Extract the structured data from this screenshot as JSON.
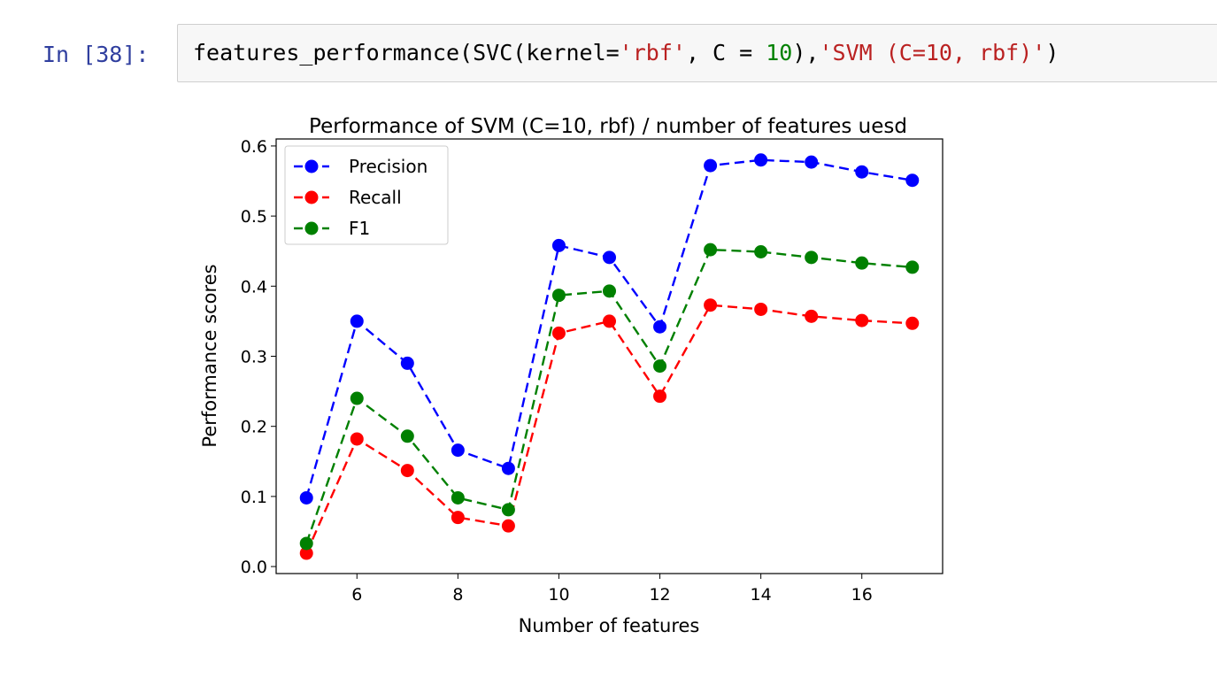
{
  "cell": {
    "prompt": "In [38]:",
    "code": {
      "fn": "features_performance",
      "open1": "(",
      "cls": "SVC",
      "open2": "(",
      "kw": "kernel=",
      "str1": "'rbf'",
      "mid": ", C = ",
      "num": "10",
      "close": "),",
      "str2": "'SVM (C=10, rbf)'",
      "end": ")"
    }
  },
  "chart_data": {
    "type": "line",
    "title": "Performance of SVM (C=10, rbf) / number of features uesd",
    "xlabel": "Number of features",
    "ylabel": "Performance scores",
    "x": [
      5,
      6,
      7,
      8,
      9,
      10,
      11,
      12,
      13,
      14,
      15,
      16,
      17
    ],
    "xlim": [
      4.4,
      17.6
    ],
    "ylim": [
      -0.01,
      0.61
    ],
    "xticks": [
      "6",
      "8",
      "10",
      "12",
      "14",
      "16"
    ],
    "yticks": [
      "0.0",
      "0.1",
      "0.2",
      "0.3",
      "0.4",
      "0.5",
      "0.6"
    ],
    "legend_position": "top-left",
    "grid": false,
    "line_style": "dashed",
    "marker": "circle",
    "series": [
      {
        "name": "Precision",
        "color": "#0000ff",
        "values": [
          0.098,
          0.35,
          0.29,
          0.166,
          0.14,
          0.458,
          0.441,
          0.342,
          0.572,
          0.58,
          0.577,
          0.563,
          0.551
        ]
      },
      {
        "name": "Recall",
        "color": "#ff0000",
        "values": [
          0.019,
          0.182,
          0.137,
          0.07,
          0.058,
          0.333,
          0.35,
          0.243,
          0.373,
          0.367,
          0.357,
          0.351,
          0.347
        ]
      },
      {
        "name": "F1",
        "color": "#008000",
        "values": [
          0.033,
          0.24,
          0.186,
          0.098,
          0.081,
          0.387,
          0.393,
          0.286,
          0.452,
          0.449,
          0.441,
          0.433,
          0.427
        ]
      }
    ]
  }
}
